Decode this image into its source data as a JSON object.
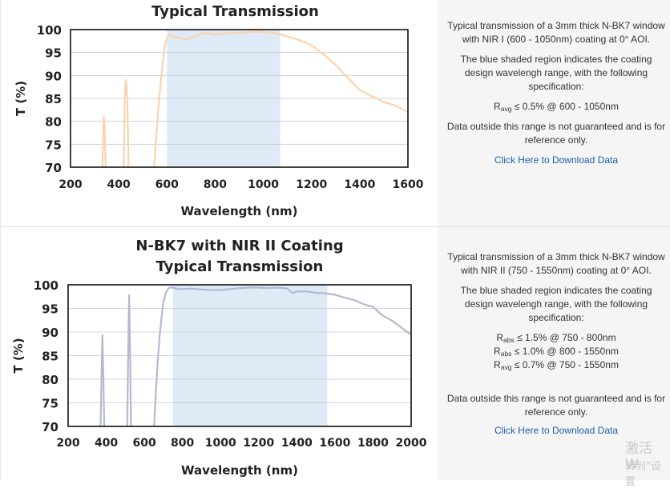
{
  "charts": [
    {
      "title_lines": [
        "Typical Transmission"
      ],
      "info": {
        "desc": "Typical transmission of a 3mm thick N-BK7 window with NIR I (600 - 1050nm) coating at 0° AOI.",
        "shaded": "The blue shaded region indicates the coating design wavelengh range, with the following specification:",
        "specs": [
          {
            "sym": "R",
            "sub": "avg",
            "text": " ≤ 0.5% @ 600 - 1050nm"
          }
        ],
        "note": "Data outside this range is not guaranteed and is for reference only.",
        "link": "Click Here to Download Data"
      }
    },
    {
      "title_lines": [
        "N-BK7 with NIR II Coating",
        "Typical Transmission"
      ],
      "info": {
        "desc": "Typical transmission of a 3mm thick N-BK7 window with NIR II (750 - 1550nm) coating at 0° AOI.",
        "shaded": "The blue shaded region indicates the coating design wavelengh range, with the following specification:",
        "specs": [
          {
            "sym": "R",
            "sub": "abs",
            "text": " ≤ 1.5% @ 750 - 800nm"
          },
          {
            "sym": "R",
            "sub": "abs",
            "text": " ≤ 1.0% @ 800 - 1550nm"
          },
          {
            "sym": "R",
            "sub": "avg",
            "text": " ≤ 0.7% @ 750 - 1550nm"
          }
        ],
        "note": "Data outside this range is not guaranteed and is for reference only.",
        "link": "Click Here to Download Data"
      }
    }
  ],
  "watermark": [
    "激活 W",
    "转到\"设置"
  ],
  "chart_data": [
    {
      "type": "line",
      "title": "Typical Transmission",
      "xlabel": "Wavelength (nm)",
      "ylabel": "T (%)",
      "xlim": [
        200,
        1600
      ],
      "ylim": [
        70,
        100
      ],
      "xticks": [
        200,
        400,
        600,
        800,
        1000,
        1200,
        1400,
        1600
      ],
      "yticks": [
        70,
        75,
        80,
        85,
        90,
        95,
        100
      ],
      "grid": true,
      "shaded_region": [
        600,
        1070
      ],
      "line_color": "#fad4b0",
      "shade_color": "#deeaf6",
      "series": [
        {
          "x": [
            332,
            337,
            341,
            346
          ],
          "y": [
            69,
            81,
            80,
            69
          ]
        },
        {
          "x": [
            420,
            425,
            429,
            432,
            436,
            441
          ],
          "y": [
            69,
            85,
            89,
            88,
            84,
            69
          ]
        },
        {
          "x": [
            545,
            555,
            565,
            575,
            590,
            600,
            615,
            630,
            650,
            680,
            700,
            720,
            750,
            780,
            800,
            850,
            900,
            950,
            1000,
            1040,
            1070,
            1100,
            1150,
            1200,
            1250,
            1300,
            1350,
            1400,
            1450,
            1500,
            1550,
            1600
          ],
          "y": [
            69,
            76,
            83,
            89,
            96,
            98.3,
            98.9,
            98.5,
            98.2,
            97.8,
            98.3,
            98.7,
            99.2,
            99.2,
            99.0,
            99.2,
            99.3,
            99.5,
            99.5,
            99.3,
            99.0,
            98.5,
            97.7,
            96.6,
            94.6,
            92.3,
            89.5,
            86.8,
            85.5,
            84.2,
            83.4,
            82.0
          ]
        }
      ]
    },
    {
      "type": "line",
      "title": "N-BK7 with NIR II Coating Typical Transmission",
      "xlabel": "Wavelength (nm)",
      "ylabel": "T (%)",
      "xlim": [
        200,
        2000
      ],
      "ylim": [
        70,
        100
      ],
      "xticks": [
        200,
        400,
        600,
        800,
        1000,
        1200,
        1400,
        1600,
        1800,
        2000
      ],
      "yticks": [
        70,
        75,
        80,
        85,
        90,
        95,
        100
      ],
      "grid": true,
      "shaded_region": [
        750,
        1560
      ],
      "line_color": "#b4b9cf",
      "shade_color": "#deeaf6",
      "series": [
        {
          "x": [
            370,
            375,
            380,
            385,
            390
          ],
          "y": [
            69,
            80,
            89.3,
            80,
            69
          ]
        },
        {
          "x": [
            510,
            515,
            520,
            525,
            530
          ],
          "y": [
            69,
            85,
            97.8,
            86,
            69
          ]
        },
        {
          "x": [
            650,
            660,
            670,
            680,
            690,
            700,
            715,
            730,
            750,
            780,
            800,
            850,
            900,
            950,
            1000,
            1050,
            1100,
            1150,
            1200,
            1250,
            1300,
            1350,
            1380,
            1400,
            1450,
            1500,
            1550,
            1600,
            1650,
            1700,
            1750,
            1800,
            1850,
            1900,
            1950,
            2000
          ],
          "y": [
            69,
            77,
            84,
            89,
            93,
            96.5,
            98.5,
            99.4,
            99.4,
            99.1,
            99.1,
            99.2,
            99.0,
            98.9,
            98.9,
            99.1,
            99.3,
            99.4,
            99.4,
            99.3,
            99.4,
            99.2,
            98.2,
            98.6,
            98.6,
            98.3,
            98.2,
            97.9,
            97.3,
            96.8,
            95.9,
            95.3,
            93.5,
            92.4,
            90.9,
            89.4
          ]
        }
      ]
    }
  ]
}
